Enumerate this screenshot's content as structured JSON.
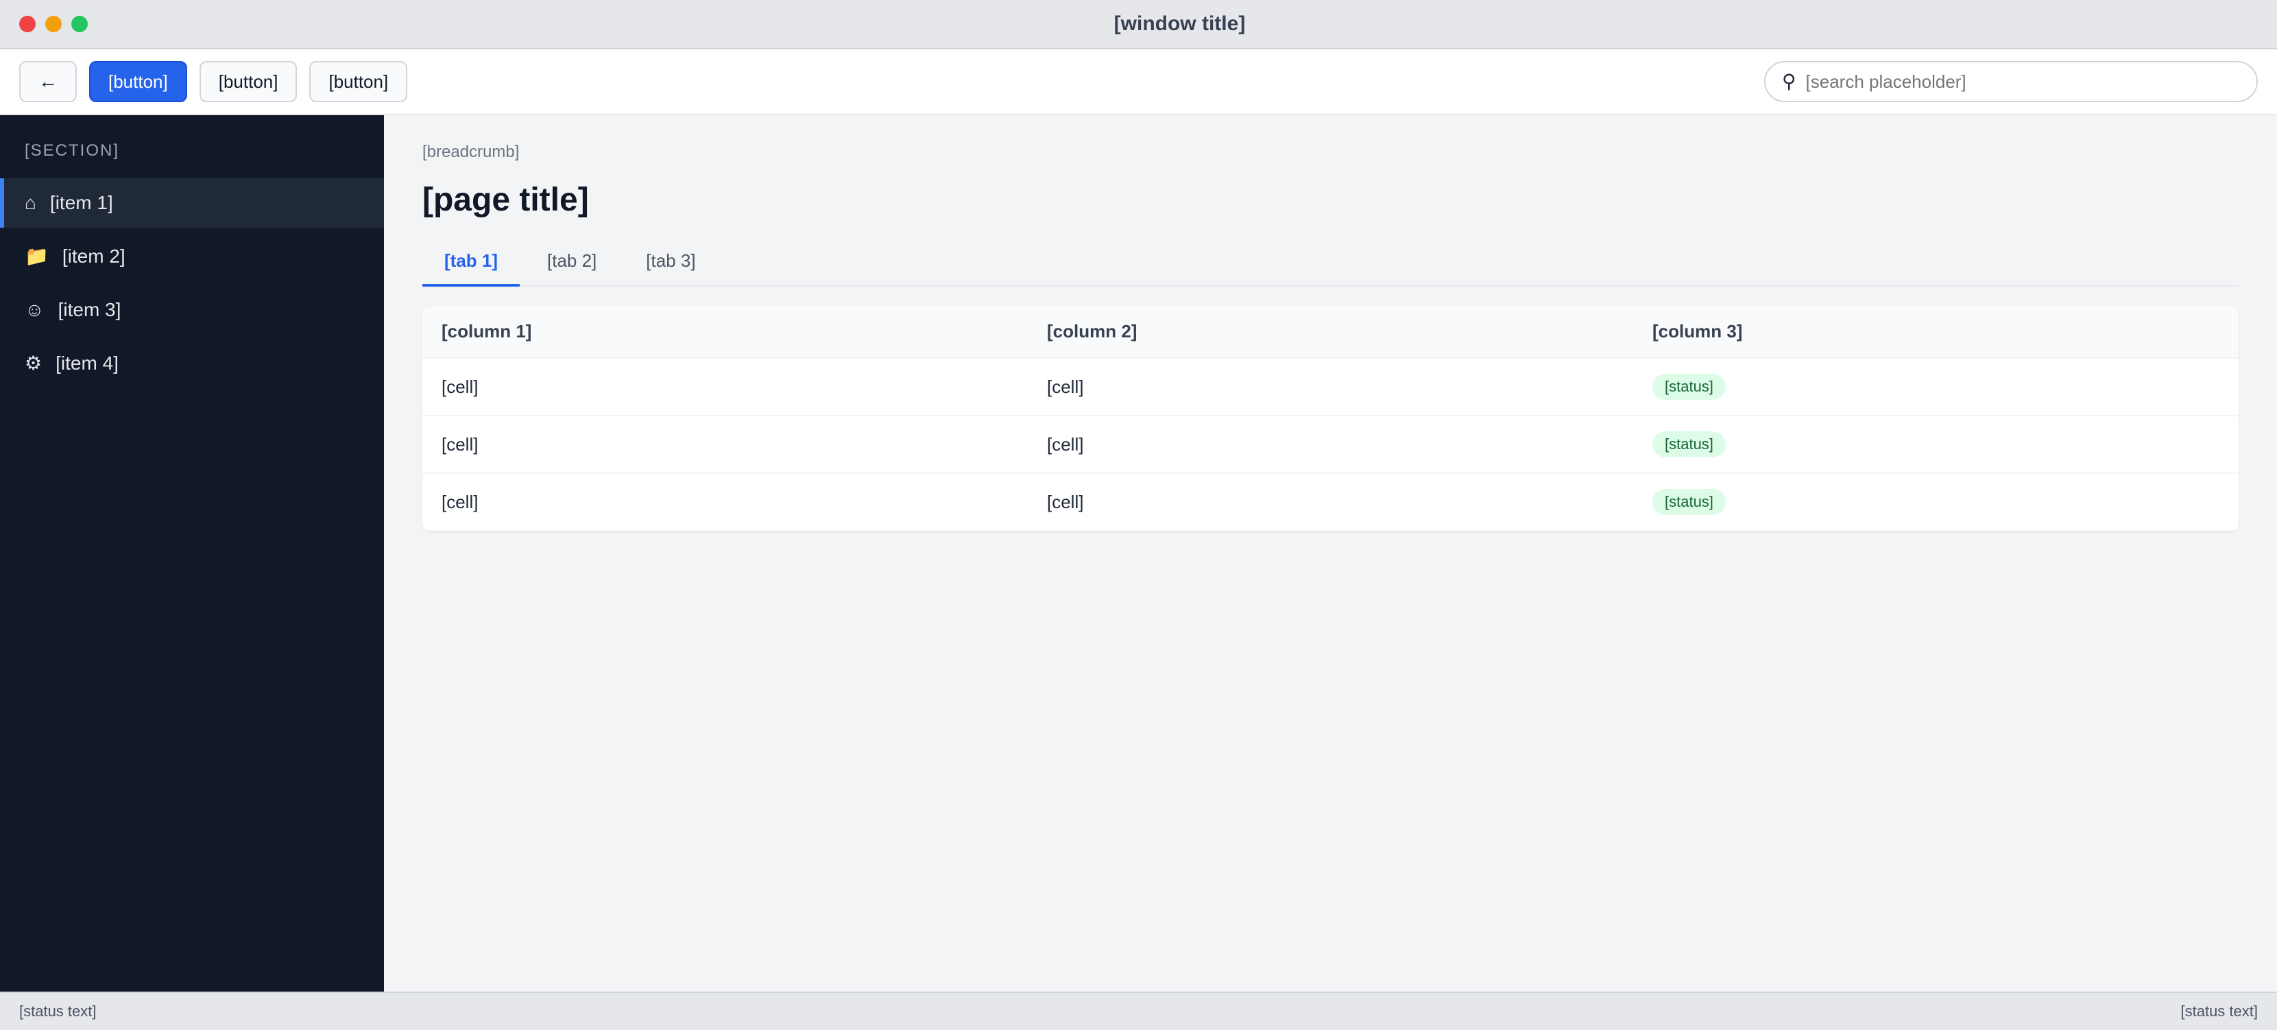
{
  "window": {
    "title": "[window title]"
  },
  "toolbar": {
    "back_icon": "arrow-left-icon",
    "new_label": "[button]",
    "open_label": "[button]",
    "save_label": "[button]",
    "search_placeholder": "[search placeholder]",
    "search_value": ""
  },
  "sidebar": {
    "header": "[section]",
    "items": [
      {
        "label": "[item 1]",
        "icon": "home-icon"
      },
      {
        "label": "[item 2]",
        "icon": "folder-icon"
      },
      {
        "label": "[item 3]",
        "icon": "user-icon"
      },
      {
        "label": "[item 4]",
        "icon": "gear-icon"
      }
    ]
  },
  "content": {
    "breadcrumb": "[breadcrumb]",
    "title": "[page title]",
    "tabs": [
      "[tab 1]",
      "[tab 2]",
      "[tab 3]"
    ],
    "table": {
      "headers": [
        "[column 1]",
        "[column 2]",
        "[column 3]"
      ],
      "rows": [
        [
          "[cell]",
          "[cell]",
          "[status]"
        ],
        [
          "[cell]",
          "[cell]",
          "[status]"
        ],
        [
          "[cell]",
          "[cell]",
          "[status]"
        ]
      ]
    }
  },
  "statusbar": {
    "left": "[status text]",
    "right": "[status text]"
  },
  "colors": {
    "accent": "#2563eb",
    "sidebar_bg": "#111827"
  }
}
